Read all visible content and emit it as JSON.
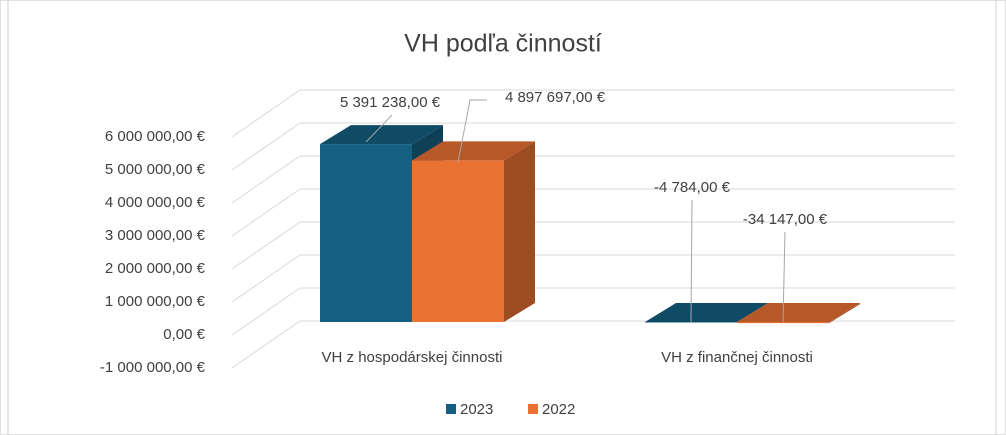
{
  "chart_data": {
    "type": "bar3d",
    "title": "VH podľa činností",
    "categories": [
      "VH z hospodárskej činnosti",
      "VH z finančnej činnosti"
    ],
    "series": [
      {
        "name": "2023",
        "color": "#156082",
        "values": [
          5391238,
          -4784
        ],
        "value_labels": [
          "5 391 238,00 €",
          "-4 784,00 €"
        ]
      },
      {
        "name": "2022",
        "color": "#e97132",
        "values": [
          4897697,
          -34147
        ],
        "value_labels": [
          "4 897 697,00 €",
          "-34 147,00 €"
        ]
      }
    ],
    "ylim": [
      -1000000,
      6000000
    ],
    "yticks": [
      {
        "value": -1000000,
        "label": "-1 000 000,00 €"
      },
      {
        "value": 0,
        "label": "0,00 €"
      },
      {
        "value": 1000000,
        "label": "1 000 000,00 €"
      },
      {
        "value": 2000000,
        "label": "2 000 000,00 €"
      },
      {
        "value": 3000000,
        "label": "3 000 000,00 €"
      },
      {
        "value": 4000000,
        "label": "4 000 000,00 €"
      },
      {
        "value": 5000000,
        "label": "5 000 000,00 €"
      },
      {
        "value": 6000000,
        "label": "6 000 000,00 €"
      }
    ],
    "grid": true,
    "legend": "bottom"
  }
}
